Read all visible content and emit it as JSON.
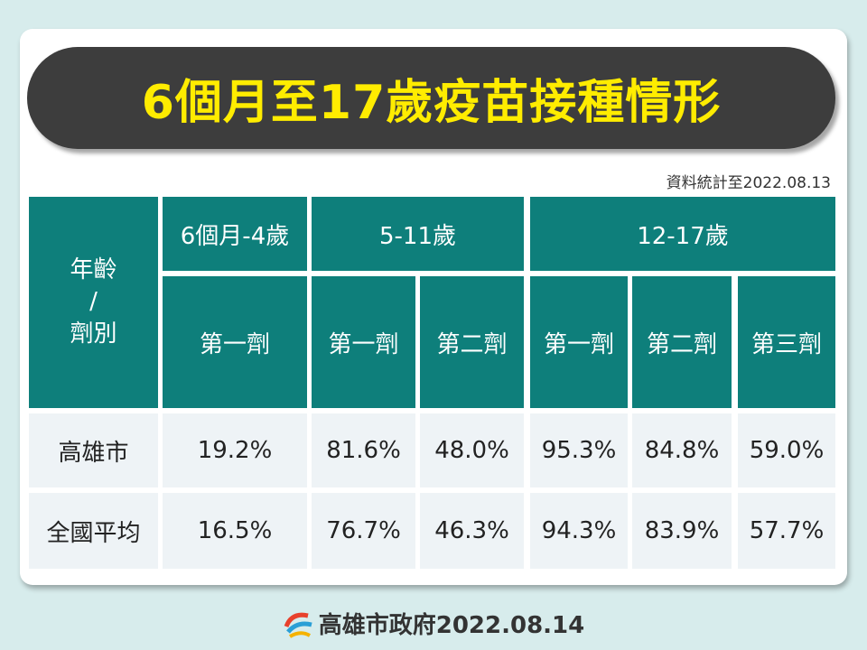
{
  "header": {
    "title": "6個月至17歲疫苗接種情形",
    "note": "資料統計至2022.08.13"
  },
  "table": {
    "corner": [
      "年齡",
      "/",
      "劑別"
    ],
    "groups": [
      "6個月-4歲",
      "5-11歲",
      "12-17歲"
    ],
    "doses": [
      "第一劑",
      "第一劑",
      "第二劑",
      "第一劑",
      "第二劑",
      "第三劑"
    ],
    "rows": [
      {
        "label": "高雄市",
        "values": [
          "19.2%",
          "81.6%",
          "48.0%",
          "95.3%",
          "84.8%",
          "59.0%"
        ]
      },
      {
        "label": "全國平均",
        "values": [
          "16.5%",
          "76.7%",
          "46.3%",
          "94.3%",
          "83.9%",
          "57.7%"
        ]
      }
    ]
  },
  "footer": {
    "text": "高雄市政府2022.08.14"
  }
}
